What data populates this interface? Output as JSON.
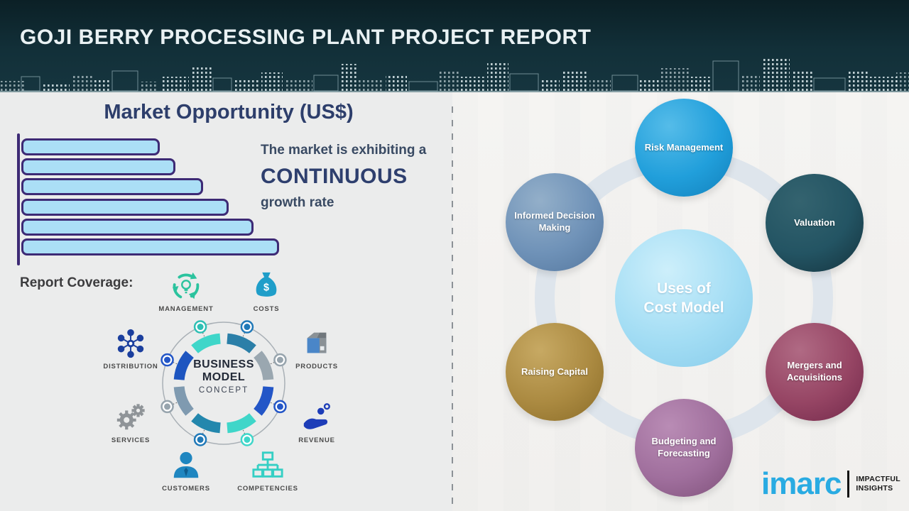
{
  "palette": {
    "header_bg": "#12303a",
    "accent_navy": "#2e3f6e",
    "brand_blue": "#29abe2",
    "ring_gray": "#dee5ec"
  },
  "header": {
    "title": "GOJI BERRY PROCESSING PLANT PROJECT REPORT"
  },
  "market": {
    "title": "Market Opportunity (US$)",
    "callout_line1": "The market is exhibiting a",
    "callout_line2": "CONTINUOUS",
    "callout_line3": "growth rate"
  },
  "chart_data": {
    "type": "bar",
    "orientation": "horizontal",
    "title": "Market Opportunity (US$)",
    "relative_values": [
      53,
      59,
      70,
      80,
      90,
      100
    ],
    "axis_tick_labels_shown": false,
    "bar_fill": "#abdff6",
    "bar_border": "#3d2a75",
    "xlabel": "",
    "ylabel": ""
  },
  "report_coverage": {
    "label": "Report Coverage:",
    "items": [
      {
        "label": "MANAGEMENT",
        "icon": "management-cycle-bulb-icon",
        "color": "#2bc39e"
      },
      {
        "label": "COSTS",
        "icon": "money-bag-icon",
        "color": "#1f9ec9"
      },
      {
        "label": "DISTRIBUTION",
        "icon": "network-hub-icon",
        "color": "#1b3f9e"
      },
      {
        "label": "PRODUCTS",
        "icon": "box-icon",
        "color": "#4a86c8"
      },
      {
        "label": "SERVICES",
        "icon": "gears-icon",
        "color": "#8f9498"
      },
      {
        "label": "REVENUE",
        "icon": "hand-coins-icon",
        "color": "#1d3db8"
      },
      {
        "label": "CUSTOMERS",
        "icon": "person-icon",
        "color": "#1f86c0"
      },
      {
        "label": "COMPETENCIES",
        "icon": "org-chart-icon",
        "color": "#35cfc4"
      }
    ],
    "center_line1": "BUSINESS",
    "center_line2": "MODEL",
    "center_line3": "CONCEPT",
    "ring_segment_colors": [
      "#3fd6c9",
      "#2b7fa8",
      "#9aa7b0",
      "#2356c7",
      "#3fd6c9",
      "#2387ad",
      "#7f9ab0",
      "#1d55c0"
    ],
    "ring_node_colors": [
      "#2ebfb4",
      "#2079b8",
      "#97a4ad",
      "#2356c7",
      "#3fd6c9",
      "#2079b8",
      "#97a4ad",
      "#2356c7"
    ]
  },
  "uses_diagram": {
    "center_line1": "Uses of",
    "center_line2": "Cost Model",
    "center_colors": [
      "#cdeffb",
      "#a3ddf4",
      "#86cbea"
    ],
    "nodes": [
      {
        "label": "Risk Management",
        "colors": [
          "#55bce9",
          "#219fdb",
          "#1280bb"
        ]
      },
      {
        "label": "Informed Decision Making",
        "colors": [
          "#93afc9",
          "#6f92b8",
          "#54779e"
        ]
      },
      {
        "label": "Valuation",
        "colors": [
          "#34636f",
          "#235463",
          "#14323d"
        ]
      },
      {
        "label": "Raising Capital",
        "colors": [
          "#c7a963",
          "#ab8a41",
          "#8a6c28"
        ]
      },
      {
        "label": "Mergers and Acquisitions",
        "colors": [
          "#b06a84",
          "#964564",
          "#71284a"
        ]
      },
      {
        "label": "Budgeting and Forecasting",
        "colors": [
          "#b98cb5",
          "#a06f9d",
          "#7e5079"
        ]
      }
    ]
  },
  "logo": {
    "brand": "imarc",
    "tagline_line1": "IMPACTFUL",
    "tagline_line2": "INSIGHTS"
  }
}
